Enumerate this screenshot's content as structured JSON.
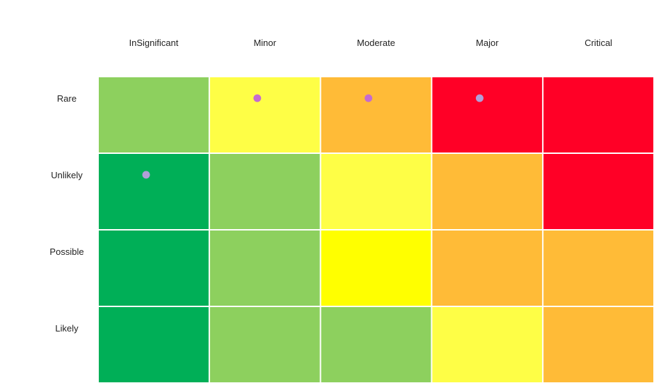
{
  "chart_data": {
    "type": "heatmap",
    "columns": [
      "InSignificant",
      "Minor",
      "Moderate",
      "Major",
      "Critical"
    ],
    "rows": [
      "Rare",
      "Unlikely",
      "Possible",
      "Likely"
    ],
    "cells": [
      [
        "#8dd05e",
        "#fefe46",
        "#ffbb37",
        "#ff0026",
        "#ff0026"
      ],
      [
        "#00af57",
        "#8dd05e",
        "#fefe46",
        "#ffbb37",
        "#ff0026"
      ],
      [
        "#00af57",
        "#8dd05e",
        "#ffff00",
        "#ffbb37",
        "#ffbb37"
      ],
      [
        "#00af57",
        "#8dd05e",
        "#8dd05e",
        "#fefe46",
        "#ffbb37"
      ]
    ],
    "markers": [
      {
        "row": 0,
        "col": 1,
        "color": "#c56bd0"
      },
      {
        "row": 0,
        "col": 2,
        "color": "#c56bd0"
      },
      {
        "row": 0,
        "col": 3,
        "color": "#b19fd8"
      },
      {
        "row": 1,
        "col": 0,
        "color": "#b19fd8"
      }
    ],
    "legend": "none",
    "grid": false
  }
}
